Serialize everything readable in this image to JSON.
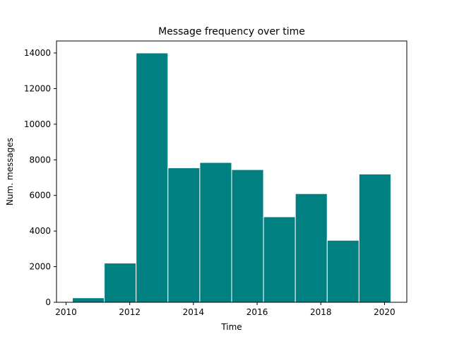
{
  "chart_data": {
    "type": "bar",
    "title": "Message frequency over time",
    "xlabel": "Time",
    "ylabel": "Num. messages",
    "bar_color": "#008080",
    "bar_edge_color": "#ffffff",
    "bins": [
      {
        "start": 2010.2,
        "end": 2011.2,
        "value": 250
      },
      {
        "start": 2011.2,
        "end": 2012.2,
        "value": 2200
      },
      {
        "start": 2012.2,
        "end": 2013.2,
        "value": 14000
      },
      {
        "start": 2013.2,
        "end": 2014.2,
        "value": 7550
      },
      {
        "start": 2014.2,
        "end": 2015.2,
        "value": 7850
      },
      {
        "start": 2015.2,
        "end": 2016.2,
        "value": 7450
      },
      {
        "start": 2016.2,
        "end": 2017.2,
        "value": 4800
      },
      {
        "start": 2017.2,
        "end": 2018.2,
        "value": 6100
      },
      {
        "start": 2018.2,
        "end": 2019.2,
        "value": 3480
      },
      {
        "start": 2019.2,
        "end": 2020.2,
        "value": 7200
      }
    ],
    "xlim": [
      2009.7,
      2020.7
    ],
    "ylim": [
      0,
      14000
    ],
    "xticks": [
      2010,
      2012,
      2014,
      2016,
      2018,
      2020
    ],
    "yticks": [
      0,
      2000,
      4000,
      6000,
      8000,
      10000,
      12000,
      14000
    ],
    "grid": false,
    "legend": "none"
  }
}
